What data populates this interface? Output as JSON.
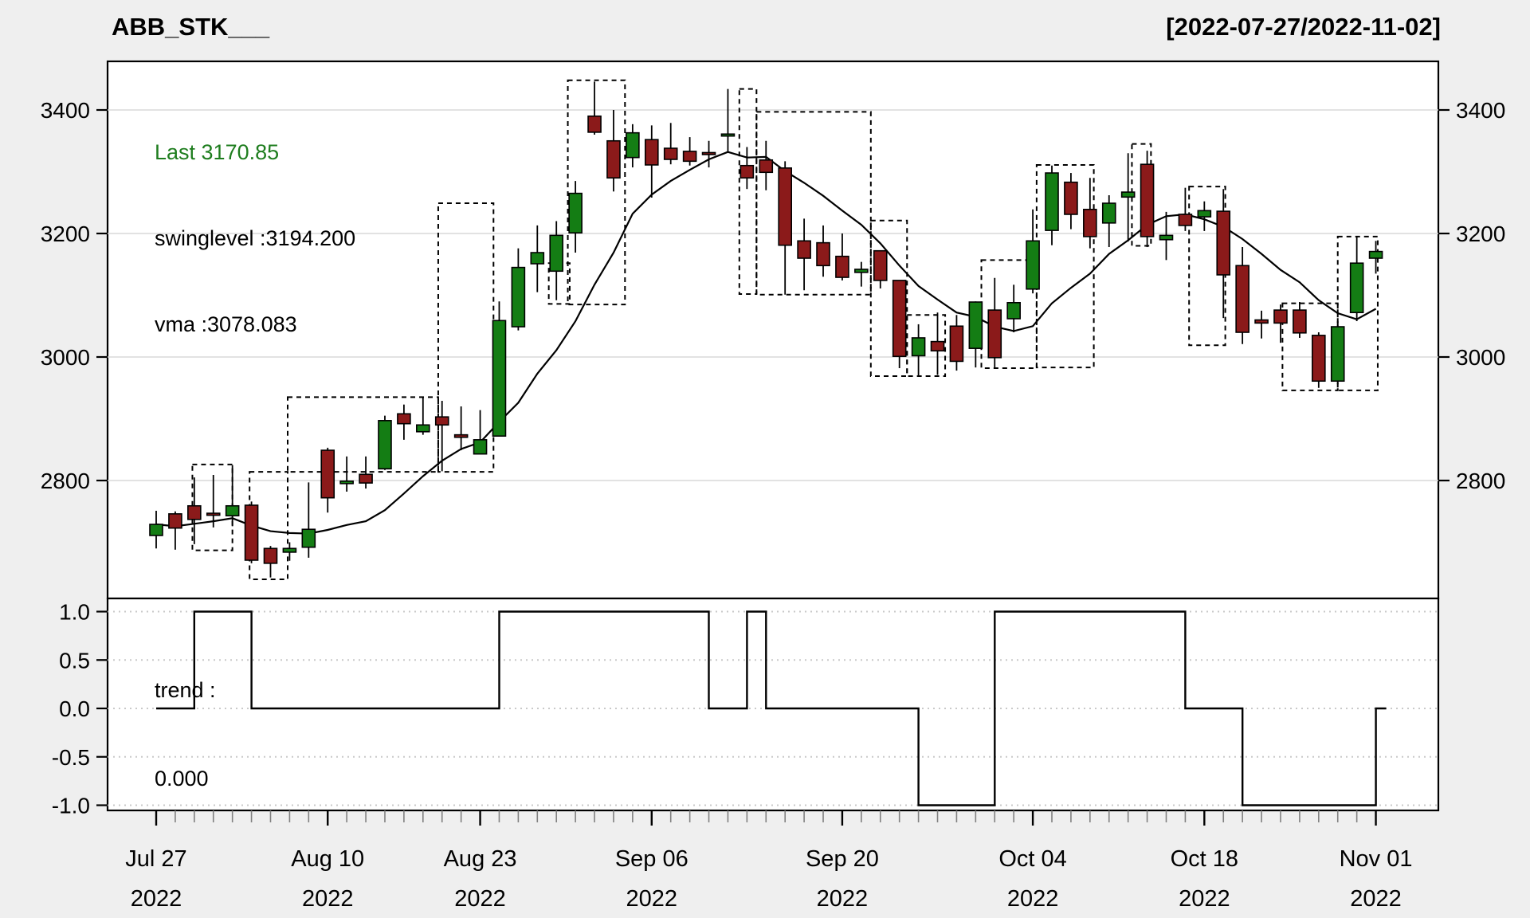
{
  "title": "ABB_STK___",
  "date_range": "[2022-07-27/2022-11-02]",
  "legend": {
    "last": "Last 3170.85",
    "swinglevel": "swinglevel :3194.200",
    "vma": "vma :3078.083"
  },
  "trend_label": {
    "line1": "trend :",
    "line2": "0.000"
  },
  "colors": {
    "background": "#efefef",
    "panel": "#ffffff",
    "up": "#147d14",
    "down": "#8b1a1a",
    "candle_border": "#000000",
    "vma_line": "#000000",
    "trend_line": "#000000",
    "grid_main": "#d8d8d8",
    "grid_trend": "#c9c9c9",
    "minor_tick": "#808080",
    "text": "#000000",
    "last_text": "#1e7d1e",
    "swing_box": "#000000"
  },
  "chart_data": {
    "type": "candlestick-with-step-indicator",
    "title": "ABB_STK___",
    "subtitle_range": "[2022-07-27/2022-11-02]",
    "main_panel": {
      "ylim": [
        2609,
        3479
      ],
      "y_ticks": [
        2800,
        3000,
        3200,
        3400
      ],
      "grid": "on",
      "legend_values": {
        "last": 3170.85,
        "swinglevel": 3194.2,
        "vma": 3078.083
      }
    },
    "trend_panel": {
      "label": "trend :",
      "last_value": 0.0,
      "ylim": [
        -1.15,
        1.15
      ],
      "y_ticks": [
        [
          1,
          "1.0"
        ],
        [
          0.5,
          "0.5"
        ],
        [
          0,
          "0.0"
        ],
        [
          -0.5,
          "-0.5"
        ],
        [
          -1,
          "-1.0"
        ]
      ],
      "grid": "dotted"
    },
    "x_labels": [
      {
        "i": 0,
        "l1": "Jul 27",
        "l2": "2022"
      },
      {
        "i": 9,
        "l1": "Aug 10",
        "l2": "2022"
      },
      {
        "i": 17,
        "l1": "Aug 23",
        "l2": "2022"
      },
      {
        "i": 26,
        "l1": "Sep 06",
        "l2": "2022"
      },
      {
        "i": 36,
        "l1": "Sep 20",
        "l2": "2022"
      },
      {
        "i": 46,
        "l1": "Oct 04",
        "l2": "2022"
      },
      {
        "i": 55,
        "l1": "Oct 18",
        "l2": "2022"
      },
      {
        "i": 64,
        "l1": "Nov 01",
        "l2": "2022"
      }
    ],
    "candles_format": [
      "date",
      "open",
      "high",
      "low",
      "close"
    ],
    "candles": [
      [
        "2022-07-27",
        2711,
        2751,
        2690,
        2729
      ],
      [
        "2022-07-28",
        2746,
        2750,
        2688,
        2723
      ],
      [
        "2022-07-29",
        2759,
        2805,
        2697,
        2737
      ],
      [
        "2022-08-01",
        2747,
        2809,
        2724,
        2746
      ],
      [
        "2022-08-02",
        2743,
        2825,
        2726,
        2759
      ],
      [
        "2022-08-03",
        2760,
        2766,
        2666,
        2671
      ],
      [
        "2022-08-04",
        2690,
        2694,
        2643,
        2666
      ],
      [
        "2022-08-05",
        2684,
        2700,
        2670,
        2690
      ],
      [
        "2022-08-08",
        2692,
        2797,
        2675,
        2721
      ],
      [
        "2022-08-10",
        2849,
        2853,
        2748,
        2772
      ],
      [
        "2022-08-11",
        2795,
        2839,
        2782,
        2799
      ],
      [
        "2022-08-12",
        2810,
        2839,
        2787,
        2796
      ],
      [
        "2022-08-16",
        2819,
        2905,
        2817,
        2897
      ],
      [
        "2022-08-17",
        2908,
        2923,
        2866,
        2892
      ],
      [
        "2022-08-18",
        2879,
        2935,
        2874,
        2890
      ],
      [
        "2022-08-19",
        2903,
        2929,
        2815,
        2890
      ],
      [
        "2022-08-22",
        2874,
        2920,
        2849,
        2870
      ],
      [
        "2022-08-23",
        2843,
        2914,
        2843,
        2866
      ],
      [
        "2022-08-24",
        2872,
        3090,
        2872,
        3059
      ],
      [
        "2022-08-25",
        3049,
        3176,
        3043,
        3145
      ],
      [
        "2022-08-26",
        3151,
        3213,
        3105,
        3169
      ],
      [
        "2022-08-29",
        3139,
        3220,
        3092,
        3197
      ],
      [
        "2022-08-30",
        3201,
        3285,
        3169,
        3265
      ],
      [
        "2022-09-01",
        3390,
        3446,
        3360,
        3364
      ],
      [
        "2022-09-02",
        3350,
        3400,
        3268,
        3290
      ],
      [
        "2022-09-05",
        3323,
        3377,
        3307,
        3363
      ],
      [
        "2022-09-06",
        3352,
        3375,
        3258,
        3311
      ],
      [
        "2022-09-07",
        3338,
        3379,
        3312,
        3320
      ],
      [
        "2022-09-08",
        3333,
        3356,
        3310,
        3317
      ],
      [
        "2022-09-09",
        3331,
        3350,
        3307,
        3330
      ],
      [
        "2022-09-12",
        3360,
        3434,
        3333,
        3361
      ],
      [
        "2022-09-13",
        3310,
        3340,
        3272,
        3290
      ],
      [
        "2022-09-14",
        3319,
        3350,
        3270,
        3299
      ],
      [
        "2022-09-15",
        3306,
        3317,
        3101,
        3181
      ],
      [
        "2022-09-16",
        3188,
        3224,
        3108,
        3160
      ],
      [
        "2022-09-19",
        3185,
        3213,
        3130,
        3148
      ],
      [
        "2022-09-20",
        3163,
        3200,
        3124,
        3129
      ],
      [
        "2022-09-21",
        3137,
        3154,
        3114,
        3142
      ],
      [
        "2022-09-22",
        3172,
        3172,
        3111,
        3124
      ],
      [
        "2022-09-23",
        3124,
        3124,
        2982,
        3001
      ],
      [
        "2022-09-26",
        3002,
        3053,
        2969,
        3031
      ],
      [
        "2022-09-27",
        3025,
        3072,
        2971,
        3010
      ],
      [
        "2022-09-28",
        3050,
        3068,
        2978,
        2993
      ],
      [
        "2022-09-29",
        3014,
        3090,
        2983,
        3089
      ],
      [
        "2022-09-30",
        3076,
        3128,
        2982,
        2999
      ],
      [
        "2022-10-03",
        3062,
        3117,
        3040,
        3088
      ],
      [
        "2022-10-04",
        3110,
        3239,
        3103,
        3188
      ],
      [
        "2022-10-06",
        3205,
        3310,
        3181,
        3298
      ],
      [
        "2022-10-07",
        3283,
        3298,
        3207,
        3231
      ],
      [
        "2022-10-10",
        3239,
        3290,
        3176,
        3195
      ],
      [
        "2022-10-11",
        3217,
        3262,
        3178,
        3249
      ],
      [
        "2022-10-12",
        3259,
        3330,
        3187,
        3267
      ],
      [
        "2022-10-13",
        3312,
        3334,
        3178,
        3195
      ],
      [
        "2022-10-14",
        3190,
        3235,
        3157,
        3197
      ],
      [
        "2022-10-17",
        3231,
        3274,
        3204,
        3213
      ],
      [
        "2022-10-18",
        3227,
        3252,
        3204,
        3237
      ],
      [
        "2022-10-19",
        3236,
        3272,
        3063,
        3133
      ],
      [
        "2022-10-20",
        3148,
        3178,
        3021,
        3040
      ],
      [
        "2022-10-21",
        3060,
        3075,
        3030,
        3055
      ],
      [
        "2022-10-24",
        3076,
        3085,
        3023,
        3055
      ],
      [
        "2022-10-25",
        3076,
        3089,
        3031,
        3039
      ],
      [
        "2022-10-27",
        3035,
        3040,
        2950,
        2961
      ],
      [
        "2022-10-28",
        2961,
        3052,
        2960,
        3049
      ],
      [
        "2022-10-31",
        3072,
        3194.2,
        3058,
        3152
      ],
      [
        "2022-11-01",
        3160,
        3188,
        3135,
        3170.85
      ]
    ],
    "vma": [
      2729,
      2726,
      2730,
      2734,
      2739,
      2727,
      2718,
      2715,
      2714,
      2720,
      2728,
      2734,
      2752,
      2779,
      2807,
      2832,
      2851,
      2862,
      2895,
      2926,
      2973,
      3011,
      3058,
      3117,
      3169,
      3232,
      3263,
      3285,
      3303,
      3320,
      3332,
      3323,
      3324,
      3301,
      3282,
      3261,
      3237,
      3214,
      3184,
      3148,
      3115,
      3093,
      3072,
      3065,
      3049,
      3042,
      3050,
      3087,
      3112,
      3135,
      3167,
      3189,
      3214,
      3228,
      3231,
      3223,
      3211,
      3191,
      3167,
      3141,
      3121,
      3092,
      3071,
      3061,
      3078.1
    ],
    "trend": [
      0,
      0,
      1,
      1,
      1,
      0,
      0,
      0,
      0,
      0,
      0,
      0,
      0,
      0,
      0,
      0,
      0,
      0,
      1,
      1,
      1,
      1,
      1,
      1,
      1,
      1,
      1,
      1,
      1,
      0,
      0,
      1,
      0,
      0,
      0,
      0,
      0,
      0,
      0,
      0,
      -1,
      -1,
      -1,
      -1,
      1,
      1,
      1,
      1,
      1,
      1,
      1,
      1,
      1,
      1,
      0,
      0,
      0,
      -1,
      -1,
      -1,
      -1,
      -1,
      -1,
      -1,
      0
    ],
    "swing_boxes_format": [
      "i_from",
      "i_to",
      "v_top",
      "v_bottom"
    ],
    "swing_boxes": [
      [
        1.9,
        4.0,
        2826,
        2687
      ],
      [
        4.9,
        6.9,
        2814,
        2640
      ],
      [
        6.9,
        14.8,
        2935,
        2814
      ],
      [
        14.8,
        17.7,
        3249,
        2814
      ],
      [
        20.6,
        21.7,
        3152,
        3086
      ],
      [
        21.6,
        24.6,
        3448,
        3085
      ],
      [
        30.6,
        31.5,
        3434,
        3102
      ],
      [
        31.5,
        37.5,
        3397,
        3101
      ],
      [
        37.5,
        39.4,
        3221,
        2969
      ],
      [
        39.4,
        41.4,
        3068,
        2969
      ],
      [
        43.3,
        46.2,
        3157,
        2982
      ],
      [
        46.2,
        49.2,
        3311,
        2983
      ],
      [
        51.2,
        52.2,
        3345,
        3180
      ],
      [
        54.2,
        56.1,
        3276,
        3019
      ],
      [
        59.1,
        62.0,
        3087,
        2946
      ],
      [
        62.0,
        64.1,
        3195,
        2946
      ]
    ]
  }
}
